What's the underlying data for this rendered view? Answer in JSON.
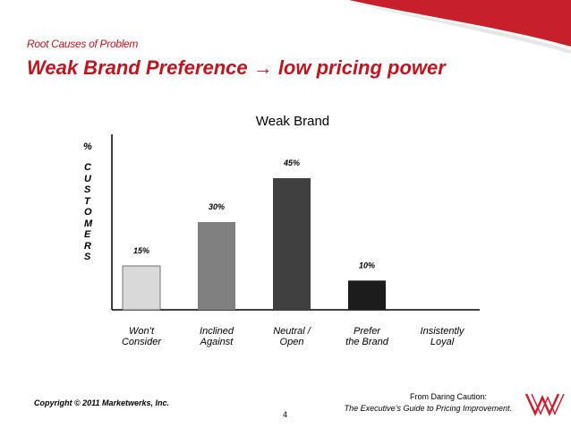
{
  "header": {
    "kicker": "Root Causes of Problem",
    "title": "Weak Brand Preference → low pricing power"
  },
  "chart_data": {
    "type": "bar",
    "title": "Weak Brand",
    "y_label_top": "%",
    "y_label": "CUSTOMERS",
    "categories": [
      "Won’t\nConsider",
      "Inclined\nAgainst",
      "Neutral /\nOpen",
      "Prefer\nthe Brand",
      "Insistently\nLoyal"
    ],
    "values": [
      15,
      30,
      45,
      10,
      0
    ],
    "value_labels": [
      "15%",
      "30%",
      "45%",
      "10%",
      null
    ],
    "colors": [
      "#d9d9d9",
      "#808080",
      "#404040",
      "#1c1c1c",
      "#1c1c1c"
    ],
    "ylim": [
      0,
      60
    ]
  },
  "footer": {
    "copyright": "Copyright © 2011 Marketwerks, Inc.",
    "page": "4",
    "source_line1": "From Daring Caution:",
    "source_line2": "The Executive’s Guide to Pricing Improvement."
  }
}
